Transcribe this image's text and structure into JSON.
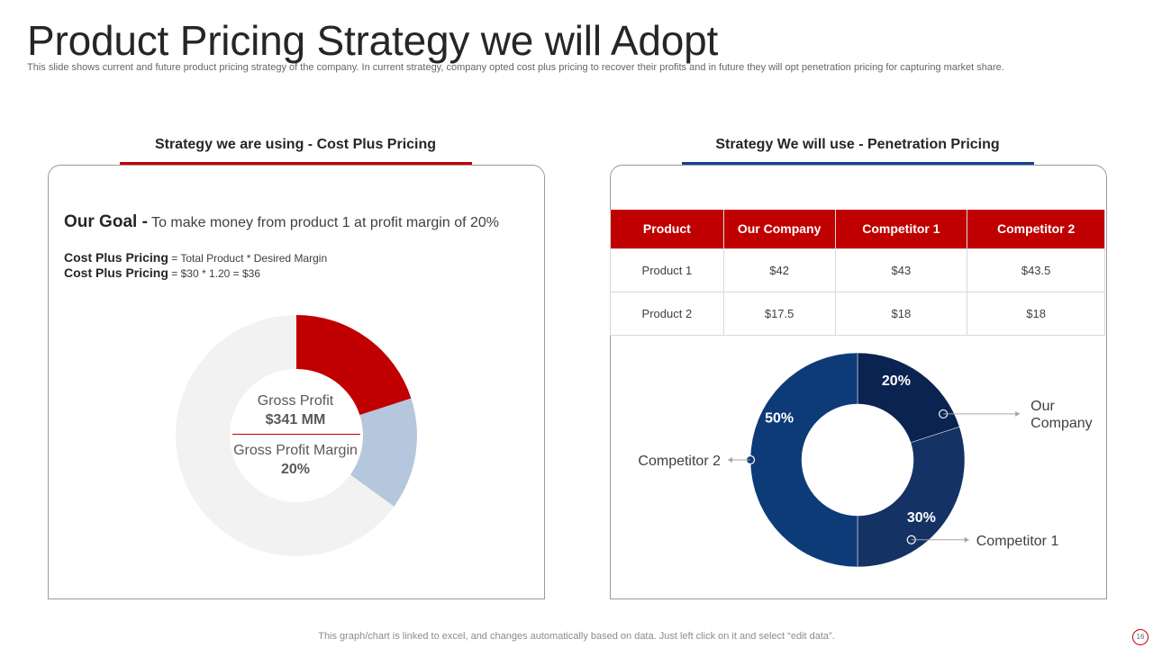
{
  "slide": {
    "title": "Product Pricing Strategy we will Adopt",
    "subtitle": "This slide shows current and future product pricing strategy of the company. In current strategy, company opted cost plus pricing to recover their profits and in future they will opt penetration pricing for capturing market share.",
    "footer": "This graph/chart is linked to excel,  and changes automatically based on data. Just left click on it and select “edit data”.",
    "page_number": "16"
  },
  "left": {
    "heading": "Strategy  we are using - Cost  Plus Pricing",
    "goal_label": "Our Goal -",
    "goal_text": " To make money from product 1 at profit margin of 20%",
    "formula1_label": "Cost Plus Pricing",
    "formula1_text": " = Total Product  * Desired  Margin",
    "formula2_label": "Cost Plus Pricing",
    "formula2_text": " = $30 * 1.20  = $36",
    "donut": {
      "line1": "Gross Profit",
      "line2": "$341 MM",
      "line3": "Gross Profit Margin",
      "line4": "20%"
    }
  },
  "right": {
    "heading": "Strategy  We will use - Penetration Pricing",
    "table": {
      "headers": [
        "Product",
        "Our Company",
        "Competitor 1",
        "Competitor 2"
      ],
      "rows": [
        [
          "Product 1",
          "$42",
          "$43",
          "$43.5"
        ],
        [
          "Product 2",
          "$17.5",
          "$18",
          "$18"
        ]
      ]
    }
  },
  "colors": {
    "red": "#c00000",
    "light_blue": "#b4c7dc",
    "light_gray": "#f2f2f2",
    "navy_dark": "#0b2350",
    "navy_mid": "#153265",
    "navy": "#0d3b78",
    "divider": "#d9d9d9"
  },
  "chart_data": [
    {
      "type": "pie",
      "variant": "donut",
      "title": "",
      "categories": [
        "Red segment",
        "Blue segment",
        "Gray segment"
      ],
      "values": [
        20,
        15,
        65
      ],
      "center_labels": [
        "Gross Profit",
        "$341 MM",
        "Gross Profit Margin",
        "20%"
      ]
    },
    {
      "type": "pie",
      "variant": "donut",
      "title": "",
      "categories": [
        "Our Company",
        "Competitor 1",
        "Competitor 2"
      ],
      "values": [
        20,
        30,
        50
      ],
      "data_labels": [
        "20%",
        "30%",
        "50%"
      ],
      "legend_labels": [
        {
          "text": "Our",
          "text2": "Company"
        },
        {
          "text": "Competitor 1"
        },
        {
          "text": "Competitor 2"
        }
      ]
    }
  ]
}
